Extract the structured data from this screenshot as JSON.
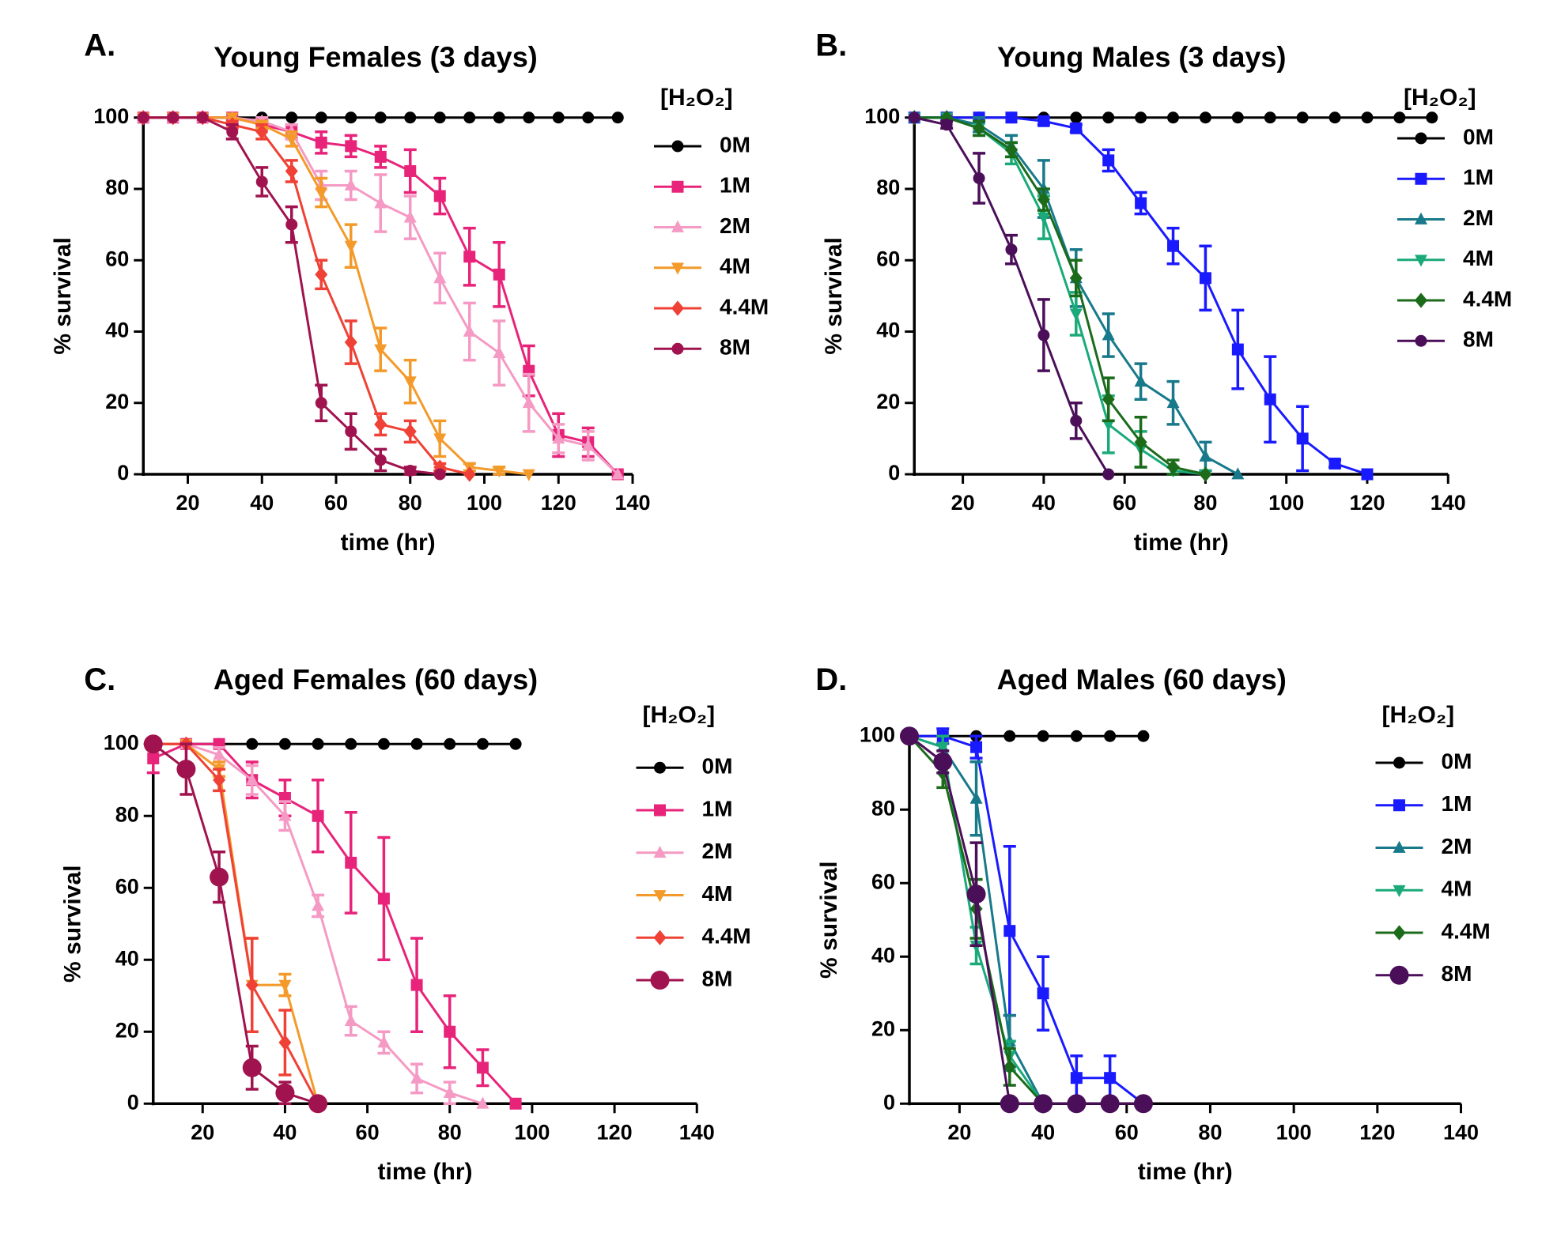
{
  "chart_data": [
    {
      "type": "line",
      "panel_label": "A.",
      "title": "Young Females (3 days)",
      "xlabel": "time (hr)",
      "ylabel": "% survival",
      "legend_title": "[H₂O₂]",
      "xlim": [
        8,
        140
      ],
      "ylim": [
        0,
        100
      ],
      "xticks": [
        20,
        40,
        60,
        80,
        100,
        120,
        140
      ],
      "yticks": [
        0,
        20,
        40,
        60,
        80,
        100
      ],
      "series": [
        {
          "name": "0M",
          "color": "#000000",
          "marker": "circle",
          "x": [
            8,
            16,
            24,
            32,
            40,
            48,
            56,
            64,
            72,
            80,
            88,
            96,
            104,
            112,
            120,
            128,
            136
          ],
          "values": [
            100,
            100,
            100,
            100,
            100,
            100,
            100,
            100,
            100,
            100,
            100,
            100,
            100,
            100,
            100,
            100,
            100
          ]
        },
        {
          "name": "1M",
          "color": "#e8237a",
          "marker": "square",
          "x": [
            8,
            16,
            24,
            32,
            40,
            48,
            56,
            64,
            72,
            80,
            88,
            96,
            104,
            112,
            120,
            128,
            136
          ],
          "values": [
            100,
            100,
            100,
            100,
            98,
            96,
            93,
            92,
            89,
            85,
            78,
            61,
            56,
            29,
            11,
            9,
            0
          ],
          "errors": [
            0,
            0,
            0,
            0,
            1,
            2,
            3,
            3,
            3,
            6,
            5,
            8,
            9,
            7,
            6,
            4,
            0
          ]
        },
        {
          "name": "2M",
          "color": "#f59ac4",
          "marker": "triangle-up",
          "x": [
            8,
            16,
            24,
            32,
            40,
            48,
            56,
            64,
            72,
            80,
            88,
            96,
            104,
            112,
            120,
            128,
            136
          ],
          "values": [
            100,
            100,
            100,
            100,
            99,
            96,
            81,
            81,
            76,
            72,
            55,
            40,
            34,
            20,
            10,
            8,
            0
          ],
          "errors": [
            0,
            0,
            0,
            0,
            1,
            2,
            4,
            4,
            8,
            6,
            7,
            8,
            9,
            8,
            4,
            4,
            0
          ]
        },
        {
          "name": "4M",
          "color": "#f39a2a",
          "marker": "triangle-down",
          "x": [
            8,
            16,
            24,
            32,
            40,
            48,
            56,
            64,
            72,
            80,
            88,
            96,
            104,
            112
          ],
          "values": [
            100,
            100,
            100,
            100,
            98,
            94,
            79,
            64,
            35,
            26,
            10,
            2,
            1,
            0
          ],
          "errors": [
            0,
            0,
            0,
            0,
            1,
            2,
            4,
            6,
            6,
            6,
            5,
            1,
            1,
            0
          ]
        },
        {
          "name": "4.4M",
          "color": "#ef4136",
          "marker": "diamond",
          "x": [
            8,
            16,
            24,
            32,
            40,
            48,
            56,
            64,
            72,
            80,
            88,
            96
          ],
          "values": [
            100,
            100,
            100,
            98,
            96,
            85,
            56,
            37,
            14,
            12,
            2,
            0
          ],
          "errors": [
            0,
            0,
            0,
            1,
            2,
            3,
            4,
            6,
            3,
            3,
            1,
            0
          ]
        },
        {
          "name": "8M",
          "color": "#a0134f",
          "marker": "circle",
          "x": [
            8,
            16,
            24,
            32,
            40,
            48,
            56,
            64,
            72,
            80,
            88
          ],
          "values": [
            100,
            100,
            100,
            96,
            82,
            70,
            20,
            12,
            4,
            1,
            0
          ],
          "errors": [
            0,
            0,
            0,
            2,
            4,
            5,
            5,
            5,
            3,
            1,
            0
          ]
        }
      ]
    },
    {
      "type": "line",
      "panel_label": "B.",
      "title": "Young Males (3 days)",
      "xlabel": "time (hr)",
      "ylabel": "% survival",
      "legend_title": "[H₂O₂]",
      "xlim": [
        8,
        140
      ],
      "ylim": [
        0,
        100
      ],
      "xticks": [
        20,
        40,
        60,
        80,
        100,
        120,
        140
      ],
      "yticks": [
        0,
        20,
        40,
        60,
        80,
        100
      ],
      "series": [
        {
          "name": "0M",
          "color": "#000000",
          "marker": "circle",
          "x": [
            8,
            16,
            24,
            32,
            40,
            48,
            56,
            64,
            72,
            80,
            88,
            96,
            104,
            112,
            120,
            128,
            136
          ],
          "values": [
            100,
            100,
            100,
            100,
            100,
            100,
            100,
            100,
            100,
            100,
            100,
            100,
            100,
            100,
            100,
            100,
            100
          ]
        },
        {
          "name": "1M",
          "color": "#1a1aff",
          "marker": "square",
          "x": [
            8,
            16,
            24,
            32,
            40,
            48,
            56,
            64,
            72,
            80,
            88,
            96,
            104,
            112,
            120
          ],
          "values": [
            100,
            100,
            100,
            100,
            99,
            97,
            88,
            76,
            64,
            55,
            35,
            21,
            10,
            3,
            0
          ],
          "errors": [
            0,
            0,
            0,
            0,
            1,
            1,
            3,
            3,
            5,
            9,
            11,
            12,
            9,
            1,
            0
          ]
        },
        {
          "name": "2M",
          "color": "#17798a",
          "marker": "triangle-up",
          "x": [
            8,
            16,
            24,
            32,
            40,
            48,
            56,
            64,
            72,
            80,
            88
          ],
          "values": [
            100,
            100,
            98,
            92,
            80,
            55,
            39,
            26,
            20,
            5,
            0
          ],
          "errors": [
            0,
            0,
            2,
            3,
            8,
            8,
            6,
            5,
            6,
            4,
            0
          ]
        },
        {
          "name": "4M",
          "color": "#1aaa7a",
          "marker": "triangle-down",
          "x": [
            8,
            16,
            24,
            32,
            40,
            48,
            56,
            64,
            72,
            80
          ],
          "values": [
            100,
            100,
            97,
            90,
            72,
            45,
            14,
            7,
            1,
            0
          ],
          "errors": [
            0,
            0,
            2,
            3,
            6,
            6,
            8,
            5,
            1,
            0
          ]
        },
        {
          "name": "4.4M",
          "color": "#1b6b1b",
          "marker": "diamond",
          "x": [
            8,
            16,
            24,
            32,
            40,
            48,
            56,
            64,
            72,
            80
          ],
          "values": [
            100,
            100,
            97,
            91,
            77,
            55,
            21,
            9,
            2,
            0
          ],
          "errors": [
            0,
            0,
            2,
            2,
            3,
            5,
            6,
            7,
            2,
            0
          ]
        },
        {
          "name": "8M",
          "color": "#4b0f5a",
          "marker": "circle",
          "x": [
            8,
            16,
            24,
            32,
            40,
            48,
            56
          ],
          "values": [
            100,
            98,
            83,
            63,
            39,
            15,
            0
          ],
          "errors": [
            0,
            1,
            7,
            4,
            10,
            5,
            0
          ]
        }
      ]
    },
    {
      "type": "line",
      "panel_label": "C.",
      "title": "Aged Females (60 days)",
      "xlabel": "time (hr)",
      "ylabel": "% survival",
      "legend_title": "[H₂O₂]",
      "xlim": [
        8,
        140
      ],
      "ylim": [
        0,
        100
      ],
      "xticks": [
        20,
        40,
        60,
        80,
        100,
        120,
        140
      ],
      "yticks": [
        0,
        20,
        40,
        60,
        80,
        100
      ],
      "series": [
        {
          "name": "0M",
          "color": "#000000",
          "marker": "circle",
          "x": [
            8,
            16,
            24,
            32,
            40,
            48,
            56,
            64,
            72,
            80,
            88,
            96
          ],
          "values": [
            100,
            100,
            100,
            100,
            100,
            100,
            100,
            100,
            100,
            100,
            100,
            100
          ]
        },
        {
          "name": "1M",
          "color": "#e8237a",
          "marker": "square",
          "x": [
            8,
            16,
            24,
            32,
            40,
            48,
            56,
            64,
            72,
            80,
            88,
            96
          ],
          "values": [
            96,
            100,
            100,
            90,
            85,
            80,
            67,
            57,
            33,
            20,
            10,
            0
          ],
          "errors": [
            4,
            0,
            0,
            5,
            5,
            10,
            14,
            17,
            13,
            10,
            5,
            0
          ]
        },
        {
          "name": "2M",
          "color": "#f59ac4",
          "marker": "triangle-up",
          "x": [
            8,
            16,
            24,
            32,
            40,
            48,
            56,
            64,
            72,
            80,
            88
          ],
          "values": [
            100,
            100,
            97,
            90,
            80,
            55,
            23,
            17,
            7,
            3,
            0
          ],
          "errors": [
            0,
            0,
            2,
            4,
            4,
            3,
            4,
            3,
            4,
            3,
            0
          ]
        },
        {
          "name": "4M",
          "color": "#f39a2a",
          "marker": "triangle-down",
          "x": [
            8,
            16,
            24,
            32,
            40,
            48
          ],
          "values": [
            100,
            100,
            93,
            33,
            33,
            0
          ],
          "errors": [
            0,
            0,
            2,
            13,
            3,
            0
          ]
        },
        {
          "name": "4.4M",
          "color": "#ef4136",
          "marker": "diamond",
          "x": [
            8,
            16,
            24,
            32,
            40,
            48
          ],
          "values": [
            100,
            100,
            90,
            33,
            17,
            0
          ],
          "errors": [
            0,
            0,
            3,
            13,
            9,
            0
          ]
        },
        {
          "name": "8M",
          "color": "#a0134f",
          "marker": "big-circle",
          "x": [
            8,
            16,
            24,
            32,
            40,
            48
          ],
          "values": [
            100,
            93,
            63,
            10,
            3,
            0
          ],
          "errors": [
            0,
            7,
            7,
            6,
            3,
            0
          ]
        }
      ]
    },
    {
      "type": "line",
      "panel_label": "D.",
      "title": "Aged Males (60 days)",
      "xlabel": "time (hr)",
      "ylabel": "% survival",
      "legend_title": "[H₂O₂]",
      "xlim": [
        8,
        140
      ],
      "ylim": [
        0,
        100
      ],
      "xticks": [
        20,
        40,
        60,
        80,
        100,
        120,
        140
      ],
      "yticks": [
        0,
        20,
        40,
        60,
        80,
        100
      ],
      "series": [
        {
          "name": "0M",
          "color": "#000000",
          "marker": "circle",
          "x": [
            8,
            16,
            24,
            32,
            40,
            48,
            56,
            64
          ],
          "values": [
            100,
            100,
            100,
            100,
            100,
            100,
            100,
            100
          ]
        },
        {
          "name": "1M",
          "color": "#1a1aff",
          "marker": "square",
          "x": [
            8,
            16,
            24,
            32,
            40,
            48,
            56,
            64
          ],
          "values": [
            100,
            100,
            97,
            47,
            30,
            7,
            7,
            0
          ],
          "errors": [
            0,
            2,
            3,
            23,
            10,
            6,
            6,
            0
          ]
        },
        {
          "name": "2M",
          "color": "#17798a",
          "marker": "triangle-up",
          "x": [
            8,
            16,
            24,
            32,
            40
          ],
          "values": [
            100,
            97,
            83,
            17,
            0
          ],
          "errors": [
            0,
            3,
            10,
            7,
            0
          ]
        },
        {
          "name": "4M",
          "color": "#1aaa7a",
          "marker": "triangle-down",
          "x": [
            8,
            16,
            24,
            32,
            40
          ],
          "values": [
            100,
            97,
            43,
            13,
            0
          ],
          "errors": [
            0,
            3,
            5,
            4,
            0
          ]
        },
        {
          "name": "4.4M",
          "color": "#1b6b1b",
          "marker": "diamond",
          "x": [
            8,
            16,
            24,
            32,
            40
          ],
          "values": [
            100,
            90,
            53,
            10,
            0
          ],
          "errors": [
            0,
            4,
            8,
            5,
            0
          ]
        },
        {
          "name": "8M",
          "color": "#4b0f5a",
          "marker": "big-circle",
          "x": [
            8,
            16,
            24,
            32,
            40,
            48,
            56,
            64
          ],
          "values": [
            100,
            93,
            57,
            0,
            0,
            0,
            0,
            0
          ],
          "errors": [
            0,
            3,
            14,
            0,
            0,
            0,
            0,
            0
          ]
        }
      ]
    }
  ]
}
